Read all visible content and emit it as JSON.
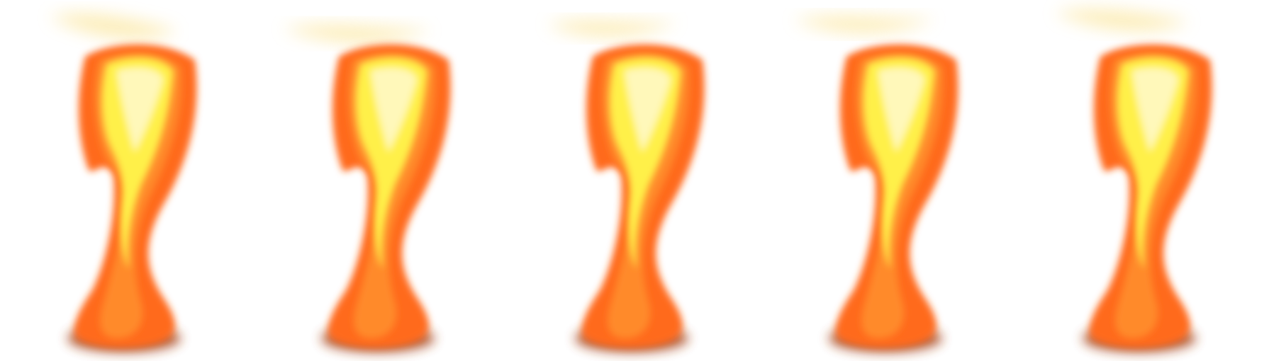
{
  "scene": {
    "background": "#ffffff",
    "colors": {
      "outer_orange": "#ff6a1f",
      "mid_orange": "#ff8a2a",
      "inner_yellow": "#fff04a",
      "core_white": "#fffbe0",
      "base_shadow": "#a8451a"
    },
    "frames": [
      {
        "name": "flame-frame-1"
      },
      {
        "name": "flame-frame-2"
      },
      {
        "name": "flame-frame-3"
      },
      {
        "name": "flame-frame-4"
      },
      {
        "name": "flame-frame-5"
      }
    ]
  }
}
